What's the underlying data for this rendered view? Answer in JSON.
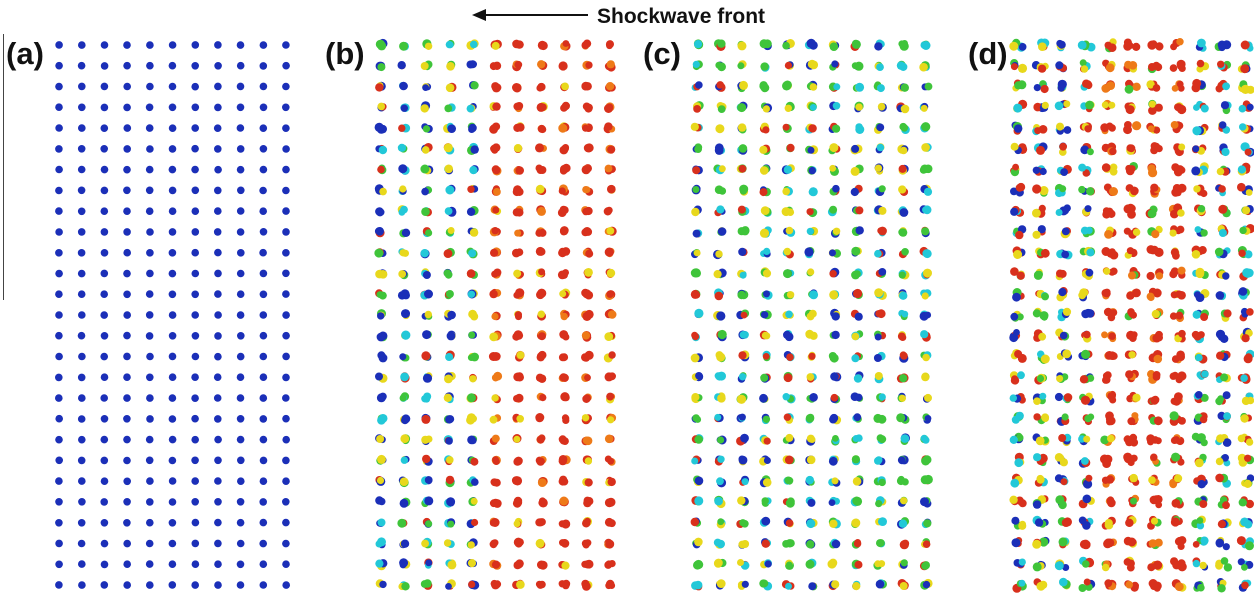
{
  "figure": {
    "header_label": "Shockwave front",
    "arrow_direction": "left",
    "panels": [
      {
        "id": "a",
        "label": "(a)",
        "disorder": 0.03,
        "hot_fraction": 0.0,
        "palette": "uniform-blue"
      },
      {
        "id": "b",
        "label": "(b)",
        "disorder": 0.35,
        "hot_fraction": 0.55,
        "palette": "blue-left-red-right"
      },
      {
        "id": "c",
        "label": "(c)",
        "disorder": 0.4,
        "hot_fraction": 0.15,
        "palette": "mixed-green"
      },
      {
        "id": "d",
        "label": "(d)",
        "disorder": 0.75,
        "hot_fraction": 0.55,
        "palette": "red-core"
      }
    ],
    "colors": {
      "blue": "#1b2fb8",
      "cyan": "#22c8d8",
      "green": "#3fc43a",
      "yellow": "#e8d81c",
      "orange": "#ee7a18",
      "red": "#d8301c"
    }
  }
}
